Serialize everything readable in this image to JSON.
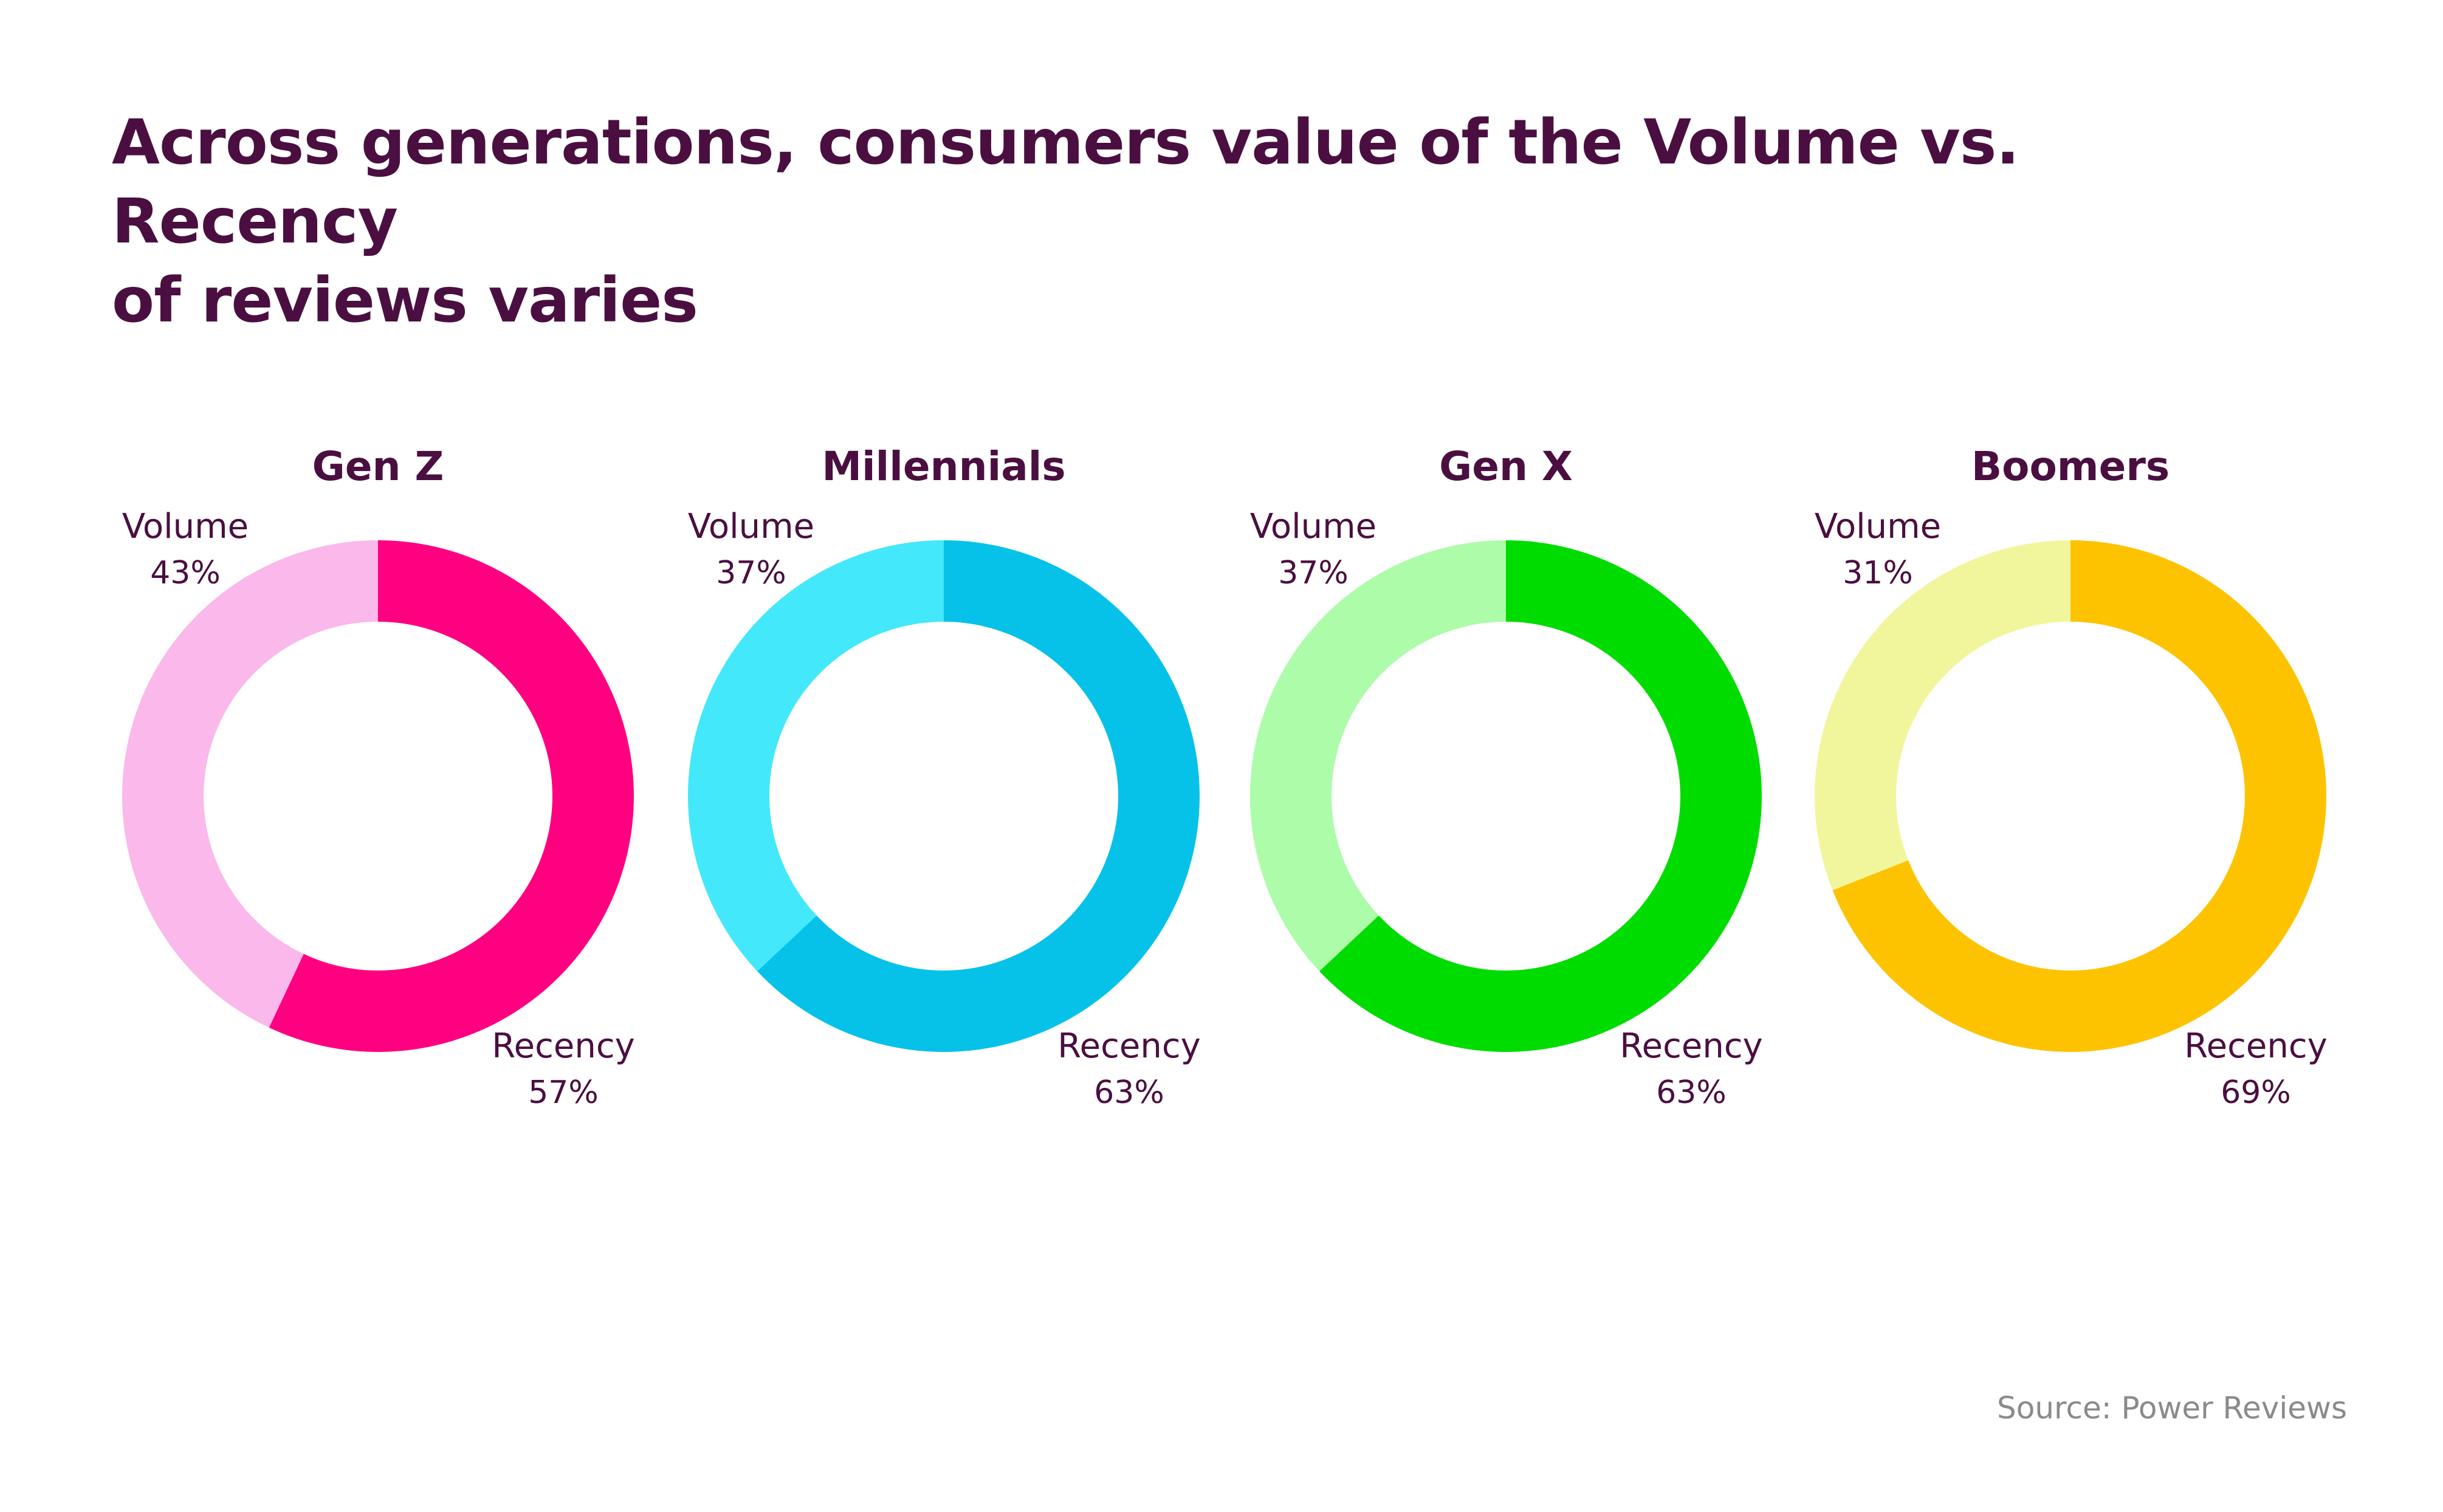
{
  "title_lines": [
    "Across generations, consumers value of the Volume vs. Recency",
    "of reviews varies"
  ],
  "source": "Source: Power Reviews",
  "text_color": "#4a0f40",
  "chart_data": [
    {
      "type": "pie",
      "title": "Gen Z",
      "categories": [
        "Volume",
        "Recency"
      ],
      "values": [
        43,
        57
      ],
      "labels": [
        "43%",
        "57%"
      ],
      "colors": [
        "#fbb8ea",
        "#ff0080"
      ]
    },
    {
      "type": "pie",
      "title": "Millennials",
      "categories": [
        "Volume",
        "Recency"
      ],
      "values": [
        37,
        63
      ],
      "labels": [
        "37%",
        "63%"
      ],
      "colors": [
        "#44e8fb",
        "#06c2e8"
      ]
    },
    {
      "type": "pie",
      "title": "Gen X",
      "categories": [
        "Volume",
        "Recency"
      ],
      "values": [
        37,
        63
      ],
      "labels": [
        "37%",
        "63%"
      ],
      "colors": [
        "#adfcaa",
        "#00dc00"
      ]
    },
    {
      "type": "pie",
      "title": "Boomers",
      "categories": [
        "Volume",
        "Recency"
      ],
      "values": [
        31,
        69
      ],
      "labels": [
        "31%",
        "69%"
      ],
      "colors": [
        "#f1f69c",
        "#fdc300"
      ]
    }
  ]
}
